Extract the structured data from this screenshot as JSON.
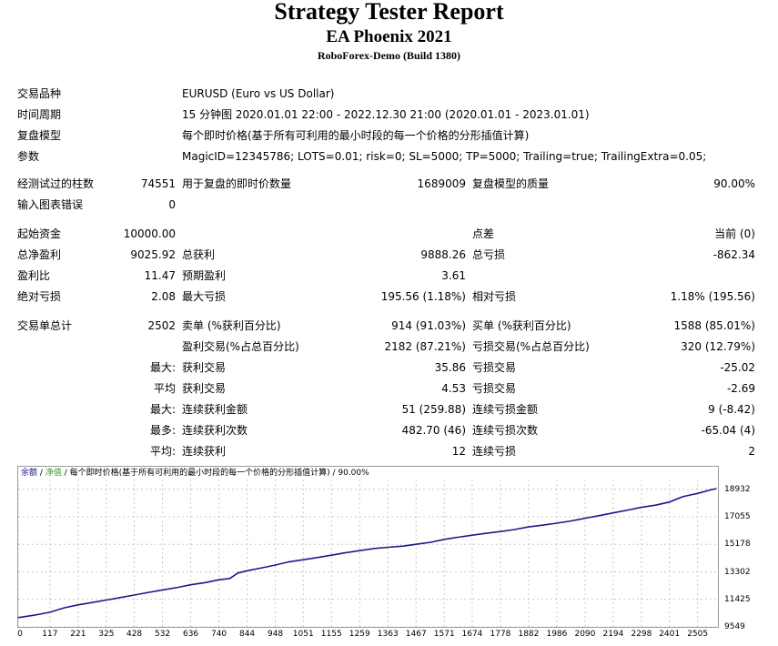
{
  "header": {
    "title": "Strategy Tester Report",
    "ea_name": "EA Phoenix 2021",
    "server": "RoboForex-Demo (Build 1380)"
  },
  "info": [
    {
      "label": "交易品种",
      "value": "EURUSD (Euro vs US Dollar)"
    },
    {
      "label": "时间周期",
      "value": "15 分钟图 2020.01.01 22:00 - 2022.12.30 21:00 (2020.01.01 - 2023.01.01)"
    },
    {
      "label": "复盘模型",
      "value": "每个即时价格(基于所有可利用的最小时段的每一个价格的分形插值计算)"
    },
    {
      "label": "参数",
      "value": "MagicID=12345786; LOTS=0.01; risk=0; SL=5000; TP=5000; Trailing=true; TrailingExtra=0.05;"
    }
  ],
  "bars": {
    "bars_label": "经测试过的柱数",
    "bars_value": "74551",
    "ticks_label": "用于复盘的即时价数量",
    "ticks_value": "1689009",
    "quality_label": "复盘模型的质量",
    "quality_value": "90.00%",
    "errors_label": "输入图表错误",
    "errors_value": "0"
  },
  "stats": {
    "initial_deposit_label": "起始资金",
    "initial_deposit": "10000.00",
    "spread_label": "点差",
    "spread": "当前 (0)",
    "net_profit_label": "总净盈利",
    "net_profit": "9025.92",
    "gross_profit_label": "总获利",
    "gross_profit": "9888.26",
    "gross_loss_label": "总亏损",
    "gross_loss": "-862.34",
    "profit_factor_label": "盈利比",
    "profit_factor": "11.47",
    "expected_payoff_label": "预期盈利",
    "expected_payoff": "3.61",
    "abs_drawdown_label": "绝对亏损",
    "abs_drawdown": "2.08",
    "max_drawdown_label": "最大亏损",
    "max_drawdown": "195.56 (1.18%)",
    "rel_drawdown_label": "相对亏损",
    "rel_drawdown": "1.18% (195.56)"
  },
  "trades": {
    "total_label": "交易单总计",
    "total": "2502",
    "short_label": "卖单 (%获利百分比)",
    "short": "914 (91.03%)",
    "long_label": "买单 (%获利百分比)",
    "long": "1588 (85.01%)",
    "profit_trades_label": "盈利交易(%占总百分比)",
    "profit_trades": "2182 (87.21%)",
    "loss_trades_label": "亏损交易(%占总百分比)",
    "loss_trades": "320 (12.79%)",
    "rows": [
      {
        "prefix": "最大:",
        "l_label": "获利交易",
        "l_value": "35.86",
        "r_label": "亏损交易",
        "r_value": "-25.02"
      },
      {
        "prefix": "平均",
        "l_label": "获利交易",
        "l_value": "4.53",
        "r_label": "亏损交易",
        "r_value": "-2.69"
      },
      {
        "prefix": "最大:",
        "l_label": "连续获利金额",
        "l_value": "51 (259.88)",
        "r_label": "连续亏损金额",
        "r_value": "9 (-8.42)"
      },
      {
        "prefix": "最多:",
        "l_label": "连续获利次数",
        "l_value": "482.70 (46)",
        "r_label": "连续亏损次数",
        "r_value": "-65.04 (4)"
      },
      {
        "prefix": "平均:",
        "l_label": "连续获利",
        "l_value": "12",
        "r_label": "连续亏损",
        "r_value": "2"
      }
    ]
  },
  "chart_data": {
    "type": "line",
    "legend": {
      "balance": "余额",
      "equity": "净值",
      "model_desc": "每个即时价格(基于所有可利用的最小时段的每一个价格的分形插值计算)",
      "quality": "90.00%"
    },
    "colors": {
      "balance": "#1a1a8c",
      "equity": "#2e9e2e",
      "grid": "#c8c8c8"
    },
    "xlim": [
      0,
      2580
    ],
    "ylim": [
      9549,
      19600
    ],
    "x_ticks": [
      "0",
      "117",
      "221",
      "325",
      "428",
      "532",
      "636",
      "740",
      "844",
      "948",
      "1051",
      "1155",
      "1259",
      "1363",
      "1467",
      "1571",
      "1674",
      "1778",
      "1882",
      "1986",
      "2090",
      "2194",
      "2298",
      "2401",
      "2505"
    ],
    "y_ticks": [
      "18932",
      "17055",
      "15178",
      "13302",
      "11425",
      "9549"
    ],
    "series": [
      {
        "x": [
          0,
          60,
          117,
          170,
          221,
          275,
          325,
          380,
          428,
          480,
          532,
          590,
          636,
          690,
          740,
          780,
          810,
          844,
          900,
          948,
          1000,
          1051,
          1100,
          1155,
          1210,
          1259,
          1310,
          1363,
          1420,
          1467,
          1520,
          1571,
          1620,
          1674,
          1720,
          1778,
          1830,
          1882,
          1930,
          1986,
          2040,
          2090,
          2140,
          2194,
          2250,
          2298,
          2350,
          2401,
          2450,
          2505,
          2550,
          2575
        ],
        "y": [
          10180,
          10350,
          10550,
          10850,
          11050,
          11220,
          11380,
          11560,
          11720,
          11900,
          12070,
          12250,
          12420,
          12570,
          12760,
          12850,
          13220,
          13380,
          13580,
          13770,
          13990,
          14130,
          14270,
          14440,
          14620,
          14750,
          14890,
          14980,
          15060,
          15180,
          15320,
          15520,
          15660,
          15800,
          15920,
          16050,
          16190,
          16370,
          16480,
          16620,
          16780,
          16960,
          17130,
          17320,
          17520,
          17700,
          17850,
          18060,
          18430,
          18650,
          18880,
          18980
        ]
      }
    ]
  }
}
